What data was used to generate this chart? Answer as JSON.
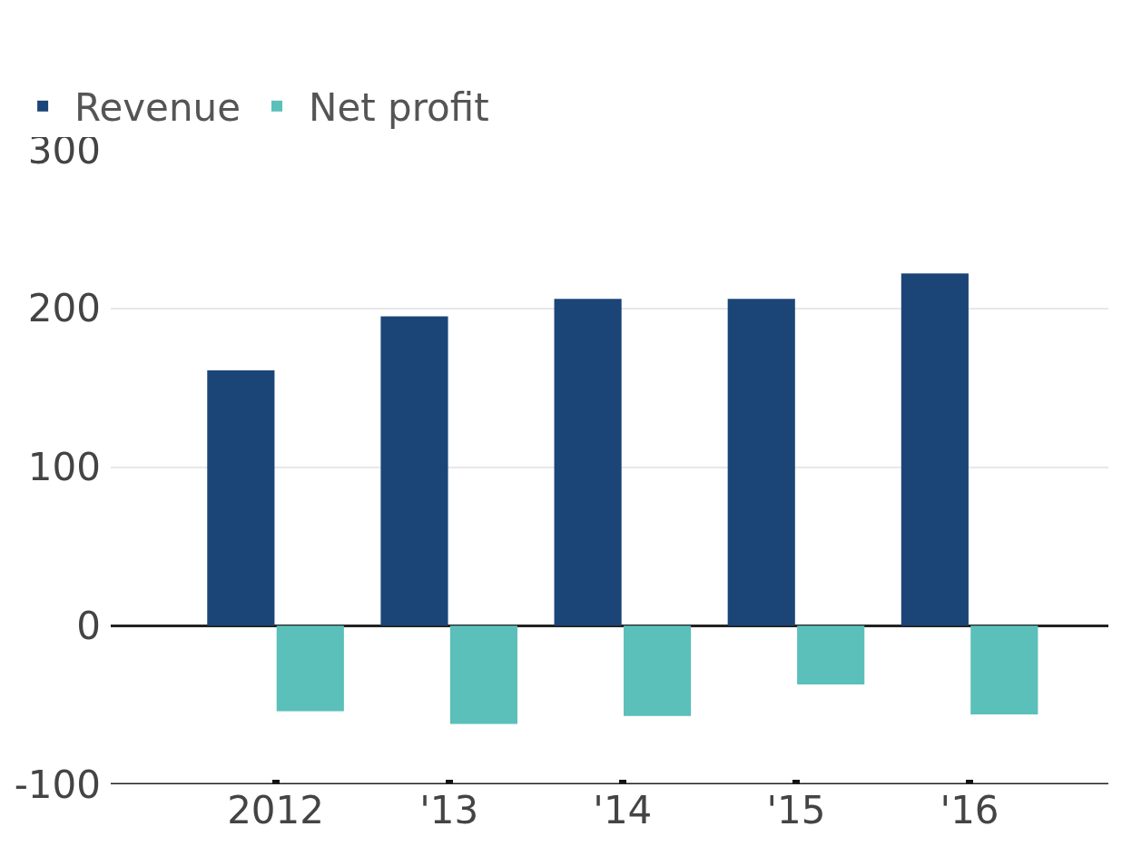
{
  "chart_data": {
    "type": "bar",
    "categories": [
      "2012",
      "'13",
      "'14",
      "'15",
      "'16"
    ],
    "series": [
      {
        "name": "Revenue",
        "color": "#1b4577",
        "values": [
          161,
          195,
          206,
          206,
          222
        ]
      },
      {
        "name": "Net profit",
        "color": "#5bbfba",
        "values": [
          -54,
          -62,
          -57,
          -37,
          -56
        ]
      }
    ],
    "ylim": [
      -100,
      300
    ],
    "yticks": [
      -100,
      0,
      100,
      200,
      300
    ],
    "grid": "y",
    "legend": "top left"
  }
}
